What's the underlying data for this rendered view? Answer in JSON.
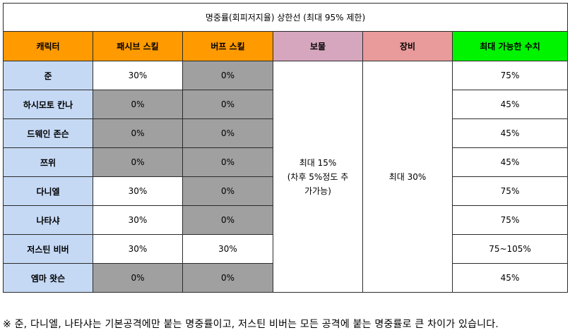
{
  "title": "명중률(회피저지율) 상한선 (최대 95% 제한)",
  "headers": {
    "character": "캐릭터",
    "passive": "패시브 스킬",
    "buff": "버프 스킬",
    "treasure": "보물",
    "equipment": "장비",
    "max": "최대 가능한 수치"
  },
  "rows": [
    {
      "name": "준",
      "passive": "30%",
      "buff": "0%",
      "max": "75%"
    },
    {
      "name": "하시모토 칸나",
      "passive": "0%",
      "buff": "0%",
      "max": "45%"
    },
    {
      "name": "드웨인 존슨",
      "passive": "0%",
      "buff": "0%",
      "max": "45%"
    },
    {
      "name": "쯔위",
      "passive": "0%",
      "buff": "0%",
      "max": "45%"
    },
    {
      "name": "다니엘",
      "passive": "30%",
      "buff": "0%",
      "max": "75%"
    },
    {
      "name": "나타샤",
      "passive": "30%",
      "buff": "0%",
      "max": "75%"
    },
    {
      "name": "저스틴 비버",
      "passive": "30%",
      "buff": "30%",
      "max": "75~105%"
    },
    {
      "name": "엠마 왓슨",
      "passive": "0%",
      "buff": "0%",
      "max": "45%"
    }
  ],
  "treasure": {
    "line1": "최대 15%",
    "line2": "(차후 5%정도 추",
    "line3": "가가능)"
  },
  "equipment": "최대 30%",
  "note": "※ 준, 다니엘, 나타샤는 기본공격에만 붙는 명중률이고, 저스틴 비버는 모든 공격에 붙는 명중률로 큰 차이가 있습니다.",
  "colors": {
    "header_orange": "#ff9a00",
    "header_treasure": "#d6a6be",
    "header_equipment": "#e99a9a",
    "header_max": "#00f400",
    "character_cell": "#c5d9f5",
    "grey_cell": "#a0a0a0"
  }
}
